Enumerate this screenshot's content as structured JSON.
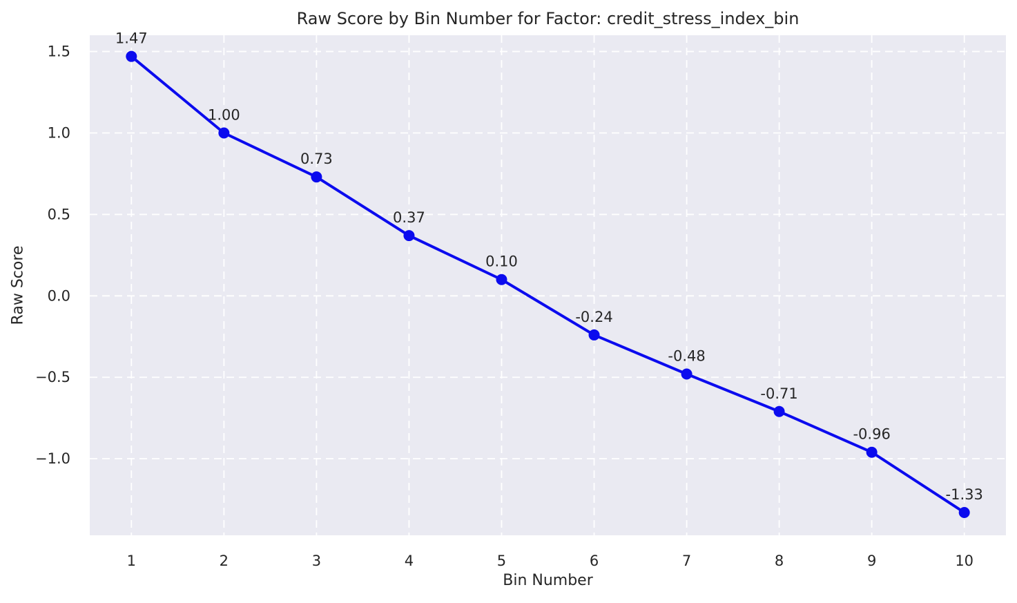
{
  "chart_data": {
    "type": "line",
    "title": "Raw Score by Bin Number for Factor: credit_stress_index_bin",
    "xlabel": "Bin Number",
    "ylabel": "Raw Score",
    "x": [
      1,
      2,
      3,
      4,
      5,
      6,
      7,
      8,
      9,
      10
    ],
    "series": [
      {
        "name": "raw_score",
        "values": [
          1.47,
          1.0,
          0.73,
          0.37,
          0.1,
          -0.24,
          -0.48,
          -0.71,
          -0.96,
          -1.33
        ],
        "point_labels": [
          "1.47",
          "1.00",
          "0.73",
          "0.37",
          "0.10",
          "-0.24",
          "-0.48",
          "-0.71",
          "-0.96",
          "-1.33"
        ]
      }
    ],
    "xtick_labels": [
      "1",
      "2",
      "3",
      "4",
      "5",
      "6",
      "7",
      "8",
      "9",
      "10"
    ],
    "ytick_values": [
      1.5,
      1.0,
      0.5,
      0.0,
      -0.5,
      -1.0
    ],
    "ytick_labels": [
      "1.5",
      "1.0",
      "0.5",
      "0.0",
      "−0.5",
      "−1.0"
    ],
    "xlim": [
      0.55,
      10.45
    ],
    "ylim": [
      -1.47,
      1.6
    ],
    "grid": true,
    "grid_style": "dashed",
    "legend": "none",
    "colors": {
      "line": "#0b0bee",
      "marker": "#0b0bee",
      "plot_background": "#eaeaf2",
      "grid": "#ffffff",
      "text": "#262626",
      "figure_background": "#ffffff"
    }
  }
}
